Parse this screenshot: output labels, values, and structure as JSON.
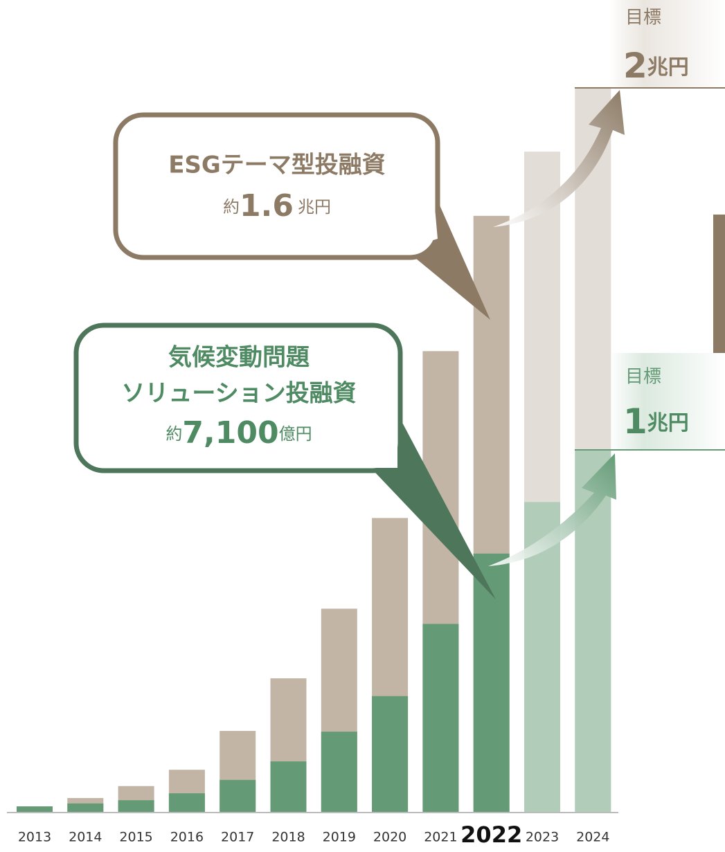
{
  "chart_data": {
    "type": "bar",
    "mode": "overlay",
    "categories": [
      "2013",
      "2014",
      "2015",
      "2016",
      "2017",
      "2018",
      "2019",
      "2020",
      "2021",
      "2022",
      "2023",
      "2024"
    ],
    "highlight": "2022",
    "ylim": [
      0,
      22400
    ],
    "series": [
      {
        "name": "ESGテーマ型投融資",
        "color": "#c2b5a6",
        "colors": [
          "#c2b5a6",
          "#c2b5a6",
          "#c2b5a6",
          "#c2b5a6",
          "#c2b5a6",
          "#c2b5a6",
          "#c2b5a6",
          "#c2b5a6",
          "#c2b5a6",
          "#c2b5a6",
          "#e2ddd6",
          "#e2ddd6"
        ],
        "values": [
          170,
          400,
          730,
          1180,
          2250,
          3700,
          5620,
          8120,
          12720,
          16450,
          18220,
          20000
        ]
      },
      {
        "name": "気候変動問題ソリューション投融資",
        "color": "#649b76",
        "colors": [
          "#649b76",
          "#649b76",
          "#649b76",
          "#649b76",
          "#649b76",
          "#649b76",
          "#649b76",
          "#649b76",
          "#649b76",
          "#649b76",
          "#b1cdb9",
          "#b1cdb9"
        ],
        "values": [
          170,
          250,
          340,
          530,
          900,
          1410,
          2230,
          3210,
          5200,
          7140,
          8560,
          10000
        ]
      }
    ],
    "annotations": {
      "esg": {
        "title": "ESGテーマ型投融資",
        "prefix": "約",
        "amount": "1.6",
        "unit": "兆円"
      },
      "climate": {
        "title_1": "気候変動問題",
        "title_2": "ソリューション投融資",
        "prefix": "約",
        "amount": "7,100",
        "unit": "億円"
      },
      "target_esg": {
        "label": "目標",
        "amount": "2",
        "unit": "兆円"
      },
      "target_climate": {
        "label": "目標",
        "amount": "1",
        "unit": "兆円"
      }
    }
  }
}
